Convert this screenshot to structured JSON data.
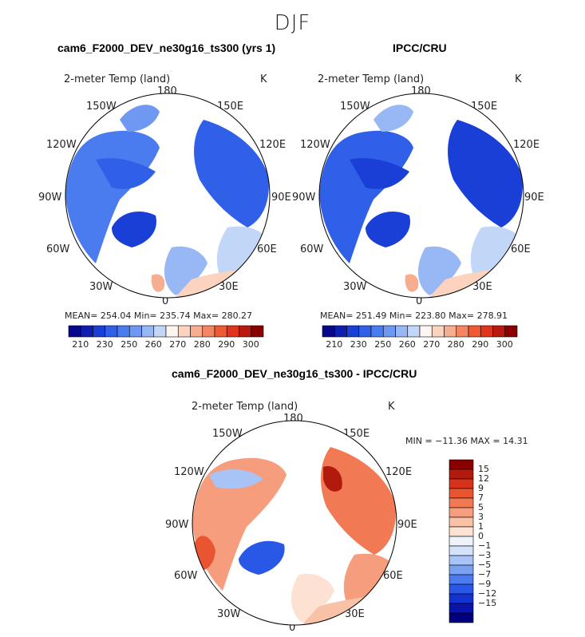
{
  "page_title": "DJF",
  "colors": {
    "abs": [
      "#08088a",
      "#0e1fb0",
      "#1a3fd6",
      "#3060e8",
      "#4a7cf0",
      "#6f98f2",
      "#97b7f5",
      "#c2d6f8",
      "#fdf5ef",
      "#fbd3bf",
      "#f7ad90",
      "#f38563",
      "#ef5a33",
      "#e0341c",
      "#b91a10",
      "#8a0000"
    ],
    "diff": [
      "#00007f",
      "#0a14a8",
      "#1432d0",
      "#2a58e6",
      "#4a7cf0",
      "#7aa0f2",
      "#a8c3f6",
      "#d4e2fa",
      "#eef3fb",
      "#fde2d3",
      "#f9c1a6",
      "#f59d7c",
      "#f17a55",
      "#e85530",
      "#d7321a",
      "#b31a0e",
      "#8a0000"
    ]
  },
  "chart_data": [
    {
      "type": "heatmap",
      "projection": "north-polar-stereographic",
      "title": "cam6_F2000_DEV_ne30g16_ts300 (yrs 1)",
      "variable": "2-meter Temp (land)",
      "units": "K",
      "stats": {
        "mean": "254.04",
        "min": "235.74",
        "max": "280.27"
      },
      "stats_text": "MEAN= 254.04  Min= 235.74  Max= 280.27",
      "colorbar_ticks": [
        "210",
        "230",
        "250",
        "260",
        "270",
        "280",
        "290",
        "300"
      ],
      "lon_labels": {
        "n": "180",
        "nne": "150E",
        "ne": "120E",
        "e": "90E",
        "se": "60E",
        "sse": "30E",
        "s": "0",
        "ssw": "30W",
        "sw": "60W",
        "w": "90W",
        "nw": "120W",
        "nnw": "150W"
      }
    },
    {
      "type": "heatmap",
      "projection": "north-polar-stereographic",
      "title": "IPCC/CRU",
      "variable": "2-meter Temp (land)",
      "units": "K",
      "stats": {
        "mean": "251.49",
        "min": "223.80",
        "max": "278.91"
      },
      "stats_text": "MEAN= 251.49  Min= 223.80  Max= 278.91",
      "colorbar_ticks": [
        "210",
        "230",
        "250",
        "260",
        "270",
        "280",
        "290",
        "300"
      ],
      "lon_labels": {
        "n": "180",
        "nne": "150E",
        "ne": "120E",
        "e": "90E",
        "se": "60E",
        "sse": "30E",
        "s": "0",
        "ssw": "30W",
        "sw": "60W",
        "w": "90W",
        "nw": "120W",
        "nnw": "150W"
      }
    },
    {
      "type": "heatmap",
      "projection": "north-polar-stereographic",
      "title": "cam6_F2000_DEV_ne30g16_ts300 - IPCC/CRU",
      "variable": "2-meter Temp (land)",
      "units": "K",
      "stats": {
        "min": "-11.36",
        "max": "14.31"
      },
      "stats_text": "MIN = −11.36 MAX =  14.31",
      "colorbar_ticks": [
        "15",
        "12",
        "9",
        "7",
        "5",
        "3",
        "1",
        "0",
        "−1",
        "−3",
        "−5",
        "−7",
        "−9",
        "−12",
        "−15"
      ],
      "lon_labels": {
        "n": "180",
        "nne": "150E",
        "ne": "120E",
        "e": "90E",
        "se": "60E",
        "sse": "30E",
        "s": "0",
        "ssw": "30W",
        "sw": "60W",
        "w": "90W",
        "nw": "120W",
        "nnw": "150W"
      }
    }
  ]
}
